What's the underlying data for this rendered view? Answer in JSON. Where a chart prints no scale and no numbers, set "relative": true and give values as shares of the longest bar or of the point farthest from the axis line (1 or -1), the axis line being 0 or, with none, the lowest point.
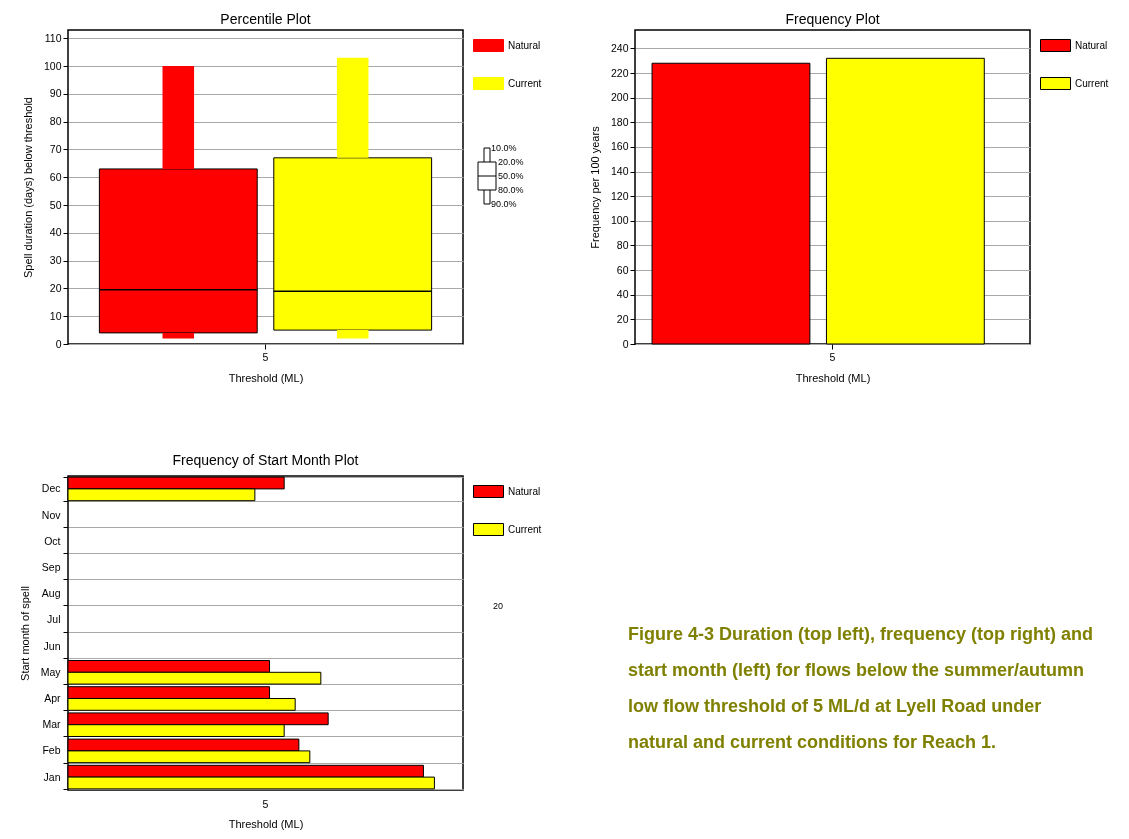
{
  "chart_data": [
    {
      "type": "box",
      "title": "Percentile Plot",
      "xlabel": "Threshold (ML)",
      "ylabel": "Spell duration (days) below threshold",
      "categories": [
        "5"
      ],
      "ylim": [
        0,
        113
      ],
      "yticks": [
        0,
        10,
        20,
        30,
        40,
        50,
        60,
        70,
        80,
        90,
        100,
        110
      ],
      "grid": "y",
      "legend": "right",
      "annotations": [
        "10.0%",
        "20.0%",
        "50.0%",
        "80.0%",
        "90.0%"
      ],
      "series": [
        {
          "name": "Natural",
          "color": "#ff0000",
          "boxes": [
            {
              "low": 2,
              "q1": 4,
              "median": 19.5,
              "q3": 63,
              "high": 100
            }
          ]
        },
        {
          "name": "Current",
          "color": "#ffff00",
          "boxes": [
            {
              "low": 2,
              "q1": 5,
              "median": 19,
              "q3": 67,
              "high": 103
            }
          ]
        }
      ]
    },
    {
      "type": "bar",
      "title": "Frequency Plot",
      "xlabel": "Threshold (ML)",
      "ylabel": "Frequency per 100 years",
      "categories": [
        "5"
      ],
      "ylim": [
        0,
        255
      ],
      "yticks": [
        0,
        20,
        40,
        60,
        80,
        100,
        120,
        140,
        160,
        180,
        200,
        220,
        240
      ],
      "grid": "y",
      "legend": "right",
      "series": [
        {
          "name": "Natural",
          "color": "#ff0000",
          "values": [
            228
          ]
        },
        {
          "name": "Current",
          "color": "#ffff00",
          "values": [
            232
          ]
        }
      ]
    },
    {
      "type": "bar",
      "orientation": "horizontal",
      "relative": true,
      "title": "Frequency of Start Month Plot",
      "xlabel": "Threshold (ML)",
      "ylabel": "Start month of spell",
      "categories": [
        "Dec",
        "Nov",
        "Oct",
        "Sep",
        "Aug",
        "Jul",
        "Jun",
        "May",
        "Apr",
        "Mar",
        "Feb",
        "Jan"
      ],
      "tick_labels": "y",
      "annotations": [
        "5",
        "20"
      ],
      "grid": "y",
      "legend": "right",
      "series": [
        {
          "name": "Natural",
          "color": "#ff0000",
          "values": [
            0.59,
            0,
            0,
            0,
            0,
            0,
            0,
            0.55,
            0.55,
            0.71,
            0.63,
            0.97
          ]
        },
        {
          "name": "Current",
          "color": "#ffff00",
          "values": [
            0.51,
            0,
            0,
            0,
            0,
            0,
            0,
            0.69,
            0.62,
            0.59,
            0.66,
            1
          ]
        }
      ]
    },
    {
      "type": "other",
      "annotations": [
        "Figure 4-3 Duration (top left), frequency (top right) and start month (left) for flows below the summer/autumn low flow threshold of 5 ML/d at Lyell Road under natural and current conditions for Reach 1."
      ]
    }
  ]
}
